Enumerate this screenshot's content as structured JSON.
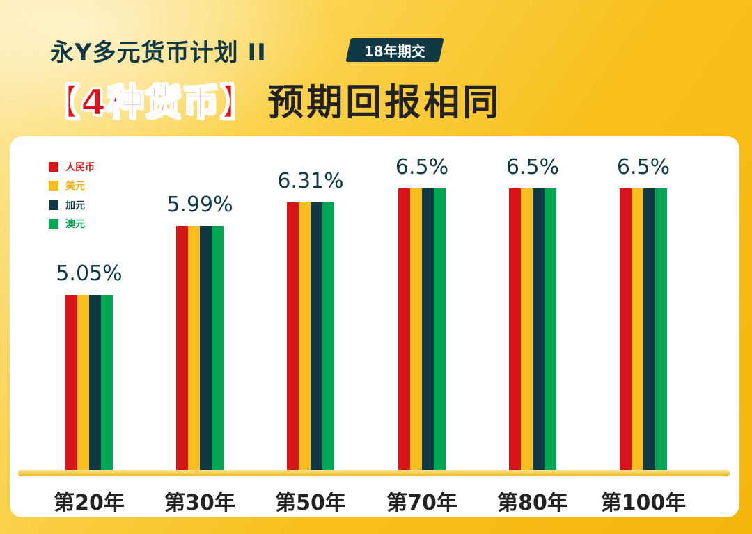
{
  "header": {
    "subtitle": "永Y多元货币计划 II",
    "tag": "18年期交",
    "headline_highlight": "【4种货币】",
    "headline_rest": "预期回报相同"
  },
  "colors": {
    "background": "#f9c21f",
    "accent_dark": "#0f3a45",
    "rmb": "#d7141a",
    "usd": "#f9bd1c",
    "cad": "#0f3a45",
    "aud": "#00a651"
  },
  "chart_data": {
    "type": "bar",
    "title": "永Y多元货币计划 II — 【4种货币】预期回报相同",
    "xlabel": "",
    "ylabel": "",
    "ylim": [
      0,
      7.0
    ],
    "categories": [
      "第20年",
      "第30年",
      "第50年",
      "第70年",
      "第80年",
      "第100年"
    ],
    "value_labels": [
      "5.05%",
      "5.99%",
      "6.31%",
      "6.5%",
      "6.5%",
      "6.5%"
    ],
    "series": [
      {
        "name": "人民币",
        "color": "#d7141a",
        "values": [
          5.05,
          5.99,
          6.31,
          6.5,
          6.5,
          6.5
        ]
      },
      {
        "name": "美元",
        "color": "#f9bd1c",
        "values": [
          5.05,
          5.99,
          6.31,
          6.5,
          6.5,
          6.5
        ]
      },
      {
        "name": "加元",
        "color": "#0f3a45",
        "values": [
          5.05,
          5.99,
          6.31,
          6.5,
          6.5,
          6.5
        ]
      },
      {
        "name": "澳元",
        "color": "#00a651",
        "values": [
          5.05,
          5.99,
          6.31,
          6.5,
          6.5,
          6.5
        ]
      }
    ],
    "legend_position": "top-left",
    "grid": false
  }
}
